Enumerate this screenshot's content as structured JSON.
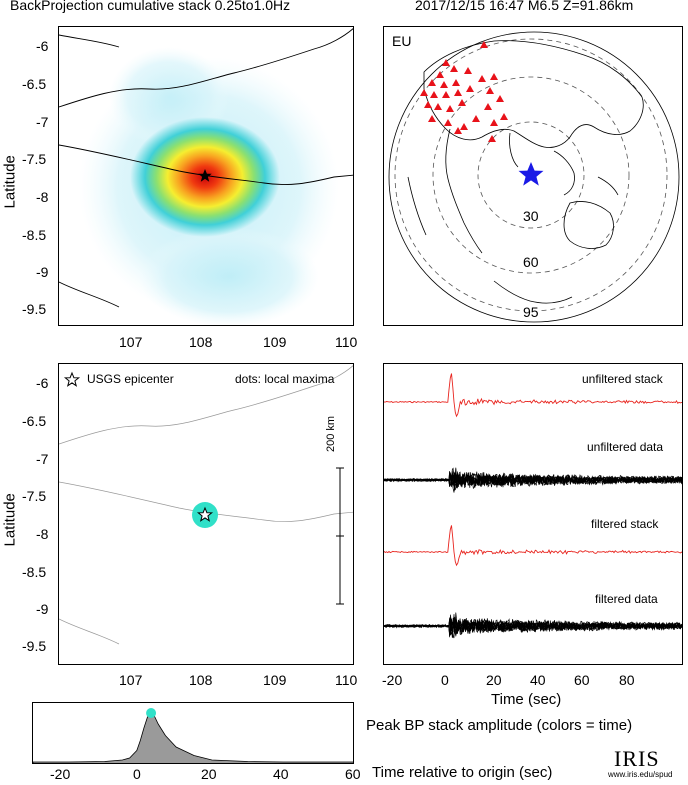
{
  "header": {
    "left_title": "BackProjection cumulative stack 0.25to1.0Hz",
    "right_title": "2017/12/15 16:47  M6.5  Z=91.86km"
  },
  "map_top": {
    "ylabel": "Latitude",
    "yticks": [
      "-6",
      "-6.5",
      "-7",
      "-7.5",
      "-8",
      "-8.5",
      "-9",
      "-9.5"
    ],
    "xticks": [
      "107",
      "108",
      "109",
      "110"
    ]
  },
  "map_bottom": {
    "ylabel": "Latitude",
    "yticks": [
      "-6",
      "-6.5",
      "-7",
      "-7.5",
      "-8",
      "-8.5",
      "-9",
      "-9.5"
    ],
    "xticks": [
      "107",
      "108",
      "109",
      "110"
    ],
    "legend_epicenter": "USGS epicenter",
    "legend_dots": "dots: local maxima",
    "scale_label": "200 km"
  },
  "globe": {
    "region_label": "EU",
    "distance_labels": [
      "30",
      "60",
      "95"
    ]
  },
  "waveforms": {
    "labels": [
      "unfiltered stack",
      "unfiltered data",
      "filtered stack",
      "filtered data"
    ],
    "xticks": [
      "-20",
      "0",
      "20",
      "40",
      "60",
      "80"
    ],
    "xlabel": "Time (sec)"
  },
  "amplitude": {
    "xticks": [
      "-20",
      "0",
      "20",
      "40",
      "60"
    ],
    "title": "Peak BP stack amplitude (colors = time)",
    "xlabel": "Time relative to origin (sec)"
  },
  "logo": {
    "text": "IRIS",
    "url": "www.iris.edu/spud"
  },
  "colors": {
    "red_stack": "#e8251f",
    "station_red": "#e8121a",
    "epicenter_blue": "#1a1ae6",
    "maxima_cyan": "#30e0c8",
    "coast": "#000000"
  },
  "chart_data": [
    {
      "type": "heatmap",
      "description_of_axes": "longitude vs latitude",
      "xlabel": "",
      "ylabel": "Latitude",
      "xlim": [
        106.0,
        110.0
      ],
      "ylim": [
        -9.8,
        -5.8
      ],
      "peak": {
        "lon": 108.0,
        "lat": -7.73
      },
      "epicenter": {
        "lon": 108.0,
        "lat": -7.73
      }
    },
    {
      "type": "scatter",
      "xlabel": "",
      "ylabel": "Latitude",
      "xlim": [
        106.0,
        110.0
      ],
      "ylim": [
        -9.8,
        -5.8
      ],
      "local_maxima": [
        {
          "lon": 108.02,
          "lat": -7.74
        }
      ],
      "epicenter": {
        "lon": 108.0,
        "lat": -7.73
      }
    },
    {
      "type": "line",
      "xlabel": "Time (sec)",
      "xlim": [
        -25,
        95
      ],
      "series": [
        {
          "name": "unfiltered stack",
          "peak_time": 1.5
        },
        {
          "name": "unfiltered data",
          "onset_time": 1.0
        },
        {
          "name": "filtered stack",
          "peak_time": 1.5
        },
        {
          "name": "filtered data",
          "onset_time": 1.0
        }
      ]
    },
    {
      "type": "area",
      "title": "Peak BP stack amplitude (colors = time)",
      "xlabel": "Time relative to origin (sec)",
      "xlim": [
        -30,
        60
      ],
      "x": [
        -30,
        -20,
        -10,
        -5,
        -3,
        -1,
        0,
        1,
        2,
        3,
        4,
        5,
        7,
        10,
        15,
        20,
        30,
        40,
        60
      ],
      "y": [
        0.02,
        0.02,
        0.03,
        0.06,
        0.1,
        0.25,
        0.45,
        0.7,
        0.92,
        1.0,
        0.93,
        0.78,
        0.55,
        0.32,
        0.15,
        0.06,
        0.03,
        0.02,
        0.02
      ],
      "peak_time": 3.0
    }
  ]
}
